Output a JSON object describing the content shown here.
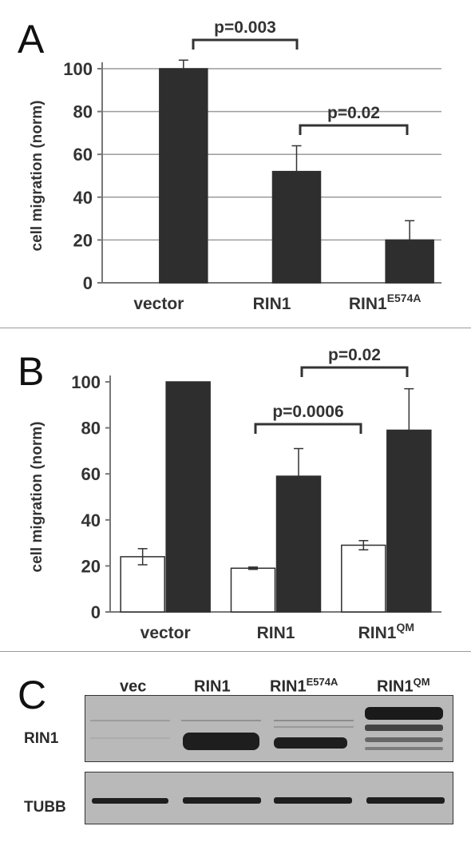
{
  "panels": {
    "A": {
      "letter": "A"
    },
    "B": {
      "letter": "B"
    },
    "C": {
      "letter": "C"
    }
  },
  "chart_data": [
    {
      "type": "bar",
      "panel": "A",
      "categories": [
        {
          "base": "vector",
          "sup": ""
        },
        {
          "base": "RIN1",
          "sup": ""
        },
        {
          "base": "RIN1",
          "sup": "E574A"
        }
      ],
      "series": [
        {
          "color": "#ffffff",
          "values": [
            0,
            0,
            0
          ],
          "errors": [
            0,
            0,
            0
          ]
        },
        {
          "color": "#2e2e2e",
          "values": [
            100,
            52,
            20
          ],
          "errors": [
            4,
            12,
            9
          ]
        }
      ],
      "ylabel": "cell migration (norm)",
      "ylim": [
        0,
        100
      ],
      "yticks": [
        0,
        20,
        40,
        60,
        80,
        100
      ],
      "grid": true,
      "annotations": [
        {
          "text": "p=0.003",
          "from": 0,
          "to": 1
        },
        {
          "text": "p=0.02",
          "from": 1,
          "to": 2
        }
      ]
    },
    {
      "type": "bar",
      "panel": "B",
      "categories": [
        {
          "base": "vector",
          "sup": ""
        },
        {
          "base": "RIN1",
          "sup": ""
        },
        {
          "base": "RIN1",
          "sup": "QM"
        }
      ],
      "series": [
        {
          "color": "#ffffff",
          "values": [
            24,
            19,
            29
          ],
          "errors": [
            3.5,
            0.5,
            2
          ]
        },
        {
          "color": "#2e2e2e",
          "values": [
            100,
            59,
            79
          ],
          "errors": [
            0,
            12,
            18
          ]
        }
      ],
      "ylabel": "cell migration (norm)",
      "ylim": [
        0,
        100
      ],
      "yticks": [
        0,
        20,
        40,
        60,
        80,
        100
      ],
      "grid": false,
      "annotations": [
        {
          "text": "p=0.0006",
          "from": 1,
          "to": 2
        },
        {
          "text": "p=0.02",
          "from": 1,
          "to": 2
        }
      ]
    }
  ],
  "blot": {
    "lanes": [
      {
        "base": "vec",
        "sup": ""
      },
      {
        "base": "RIN1",
        "sup": ""
      },
      {
        "base": "RIN1",
        "sup": "E574A"
      },
      {
        "base": "RIN1",
        "sup": "QM"
      }
    ],
    "rows": [
      "RIN1",
      "TUBB"
    ]
  }
}
